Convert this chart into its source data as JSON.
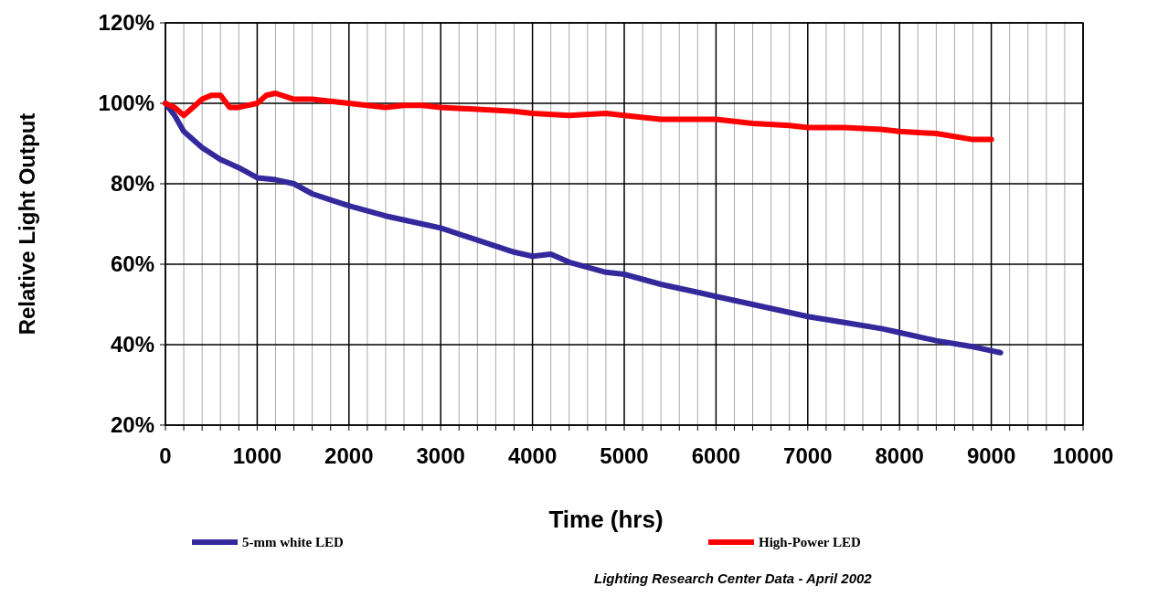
{
  "chart_data": {
    "type": "line",
    "xlabel": "Time (hrs)",
    "ylabel": "Relative Light Output",
    "annotations": [
      "Lighting Research Center Data - April 2002"
    ],
    "xlim": [
      0,
      10000
    ],
    "ylim": [
      20,
      120
    ],
    "xticks": [
      0,
      {
        "value": 200,
        "label": null
      },
      {
        "value": 400,
        "label": null
      },
      {
        "value": 600,
        "label": null
      },
      {
        "value": 800,
        "label": null
      },
      1000,
      {
        "value": 1200,
        "label": null
      },
      {
        "value": 1400,
        "label": null
      },
      {
        "value": 1600,
        "label": null
      },
      {
        "value": 1800,
        "label": null
      },
      2000,
      {
        "value": 2200,
        "label": null
      },
      {
        "value": 2400,
        "label": null
      },
      {
        "value": 2600,
        "label": null
      },
      {
        "value": 2800,
        "label": null
      },
      3000,
      {
        "value": 3200,
        "label": null
      },
      {
        "value": 3400,
        "label": null
      },
      {
        "value": 3600,
        "label": null
      },
      {
        "value": 3800,
        "label": null
      },
      4000,
      {
        "value": 4200,
        "label": null
      },
      {
        "value": 4400,
        "label": null
      },
      {
        "value": 4600,
        "label": null
      },
      {
        "value": 4800,
        "label": null
      },
      5000,
      {
        "value": 5200,
        "label": null
      },
      {
        "value": 5400,
        "label": null
      },
      {
        "value": 5600,
        "label": null
      },
      {
        "value": 5800,
        "label": null
      },
      6000,
      {
        "value": 6200,
        "label": null
      },
      {
        "value": 6400,
        "label": null
      },
      {
        "value": 6600,
        "label": null
      },
      {
        "value": 6800,
        "label": null
      },
      7000,
      {
        "value": 7200,
        "label": null
      },
      {
        "value": 7400,
        "label": null
      },
      {
        "value": 7600,
        "label": null
      },
      {
        "value": 7800,
        "label": null
      },
      8000,
      {
        "value": 8200,
        "label": null
      },
      {
        "value": 8400,
        "label": null
      },
      {
        "value": 8600,
        "label": null
      },
      {
        "value": 8800,
        "label": null
      },
      9000,
      {
        "value": 9200,
        "label": null
      },
      {
        "value": 9400,
        "label": null
      },
      {
        "value": 9600,
        "label": null
      },
      {
        "value": 9800,
        "label": null
      },
      10000
    ],
    "yticks": [
      {
        "value": 20,
        "label": "20%"
      },
      {
        "value": 40,
        "label": "40%"
      },
      {
        "value": 60,
        "label": "60%"
      },
      {
        "value": 80,
        "label": "80%"
      },
      {
        "value": 100,
        "label": "100%"
      },
      {
        "value": 120,
        "label": "120%"
      }
    ],
    "grid": true,
    "legend": "bottom",
    "line_style": "solid",
    "series": [
      {
        "name": "5-mm white LED",
        "color": "#33299c",
        "x": [
          0,
          100,
          200,
          400,
          600,
          800,
          1000,
          1200,
          1400,
          1600,
          1800,
          2000,
          2400,
          2800,
          3000,
          3400,
          3800,
          4000,
          4200,
          4400,
          4800,
          5000,
          5400,
          5800,
          6000,
          6400,
          6800,
          7000,
          7400,
          7800,
          8000,
          8400,
          8800,
          9000,
          9100
        ],
        "values": [
          100,
          97,
          93,
          89,
          86,
          84,
          81.5,
          81,
          80,
          77.5,
          76,
          74.5,
          72,
          70,
          69,
          66,
          63,
          62,
          62.5,
          60.5,
          58,
          57.5,
          55,
          53,
          52,
          50,
          48,
          47,
          45.5,
          44,
          43,
          41,
          39.5,
          38.5,
          38
        ]
      },
      {
        "name": "High-Power LED",
        "color": "#ff0000",
        "x": [
          0,
          100,
          200,
          300,
          400,
          500,
          600,
          700,
          800,
          1000,
          1100,
          1200,
          1400,
          1600,
          1800,
          2000,
          2200,
          2400,
          2600,
          2800,
          3000,
          3400,
          3800,
          4000,
          4400,
          4800,
          5000,
          5400,
          5800,
          6000,
          6400,
          6800,
          7000,
          7400,
          7800,
          8000,
          8400,
          8800,
          9000
        ],
        "values": [
          100,
          99,
          97,
          99,
          101,
          102,
          102,
          99,
          99,
          100,
          102,
          102.5,
          101,
          101,
          100.5,
          100,
          99.5,
          99,
          99.5,
          99.5,
          99,
          98.5,
          98,
          97.5,
          97,
          97.5,
          97,
          96,
          96,
          96,
          95,
          94.5,
          94,
          94,
          93.5,
          93,
          92.5,
          91,
          91
        ]
      }
    ]
  }
}
